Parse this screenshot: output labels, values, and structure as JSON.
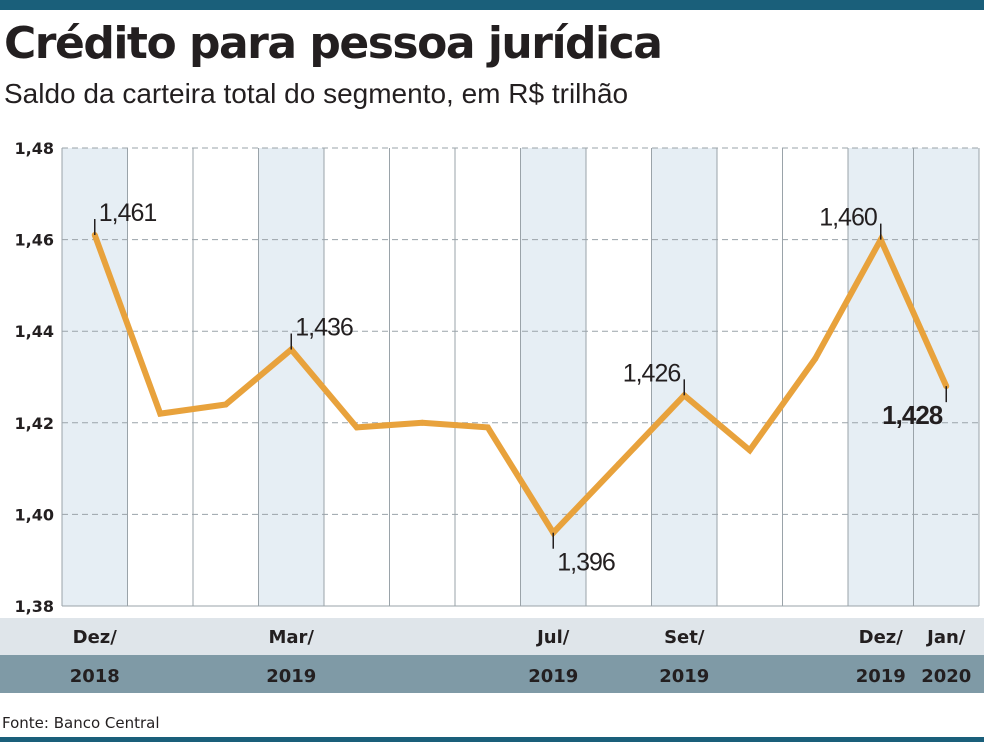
{
  "header": {
    "title": "Crédito para pessoa jurídica",
    "subtitle": "Saldo da carteira total do segmento, em R$ trilhão"
  },
  "footer": {
    "source": "Fonte: Banco Central"
  },
  "colors": {
    "line": "#e8a23c",
    "shade": "#e6eef4",
    "month_band": "#dfe5ea",
    "year_band": "#7f9aa6",
    "grid": "#9aa3a9",
    "text": "#231f20"
  },
  "chart_data": {
    "type": "line",
    "title": "Crédito para pessoa jurídica",
    "subtitle": "Saldo da carteira total do segmento, em R$ trilhão",
    "ylim": [
      1.38,
      1.48
    ],
    "yticks": [
      "1,38",
      "1,40",
      "1,42",
      "1,44",
      "1,46",
      "1,48"
    ],
    "grid": true,
    "series": [
      {
        "name": "Saldo da carteira total",
        "values": [
          1.461,
          1.422,
          1.424,
          1.436,
          1.419,
          1.42,
          1.419,
          1.396,
          1.411,
          1.426,
          1.414,
          1.434,
          1.46,
          1.428
        ]
      }
    ],
    "shaded_columns": [
      0,
      3,
      7,
      9,
      12,
      13
    ],
    "x_month_labels": [
      {
        "index": 0,
        "label": "Dez/"
      },
      {
        "index": 3,
        "label": "Mar/"
      },
      {
        "index": 7,
        "label": "Jul/"
      },
      {
        "index": 9,
        "label": "Set/"
      },
      {
        "index": 12,
        "label": "Dez/"
      },
      {
        "index": 13,
        "label": "Jan/"
      }
    ],
    "x_year_labels": [
      {
        "index": 0,
        "label": "2018"
      },
      {
        "index": 3,
        "label": "2019"
      },
      {
        "index": 7,
        "label": "2019"
      },
      {
        "index": 9,
        "label": "2019"
      },
      {
        "index": 12,
        "label": "2019"
      },
      {
        "index": 13,
        "label": "2020"
      }
    ],
    "annotations": [
      {
        "index": 0,
        "label": "1,461",
        "bold": false,
        "anchor": "right-above"
      },
      {
        "index": 3,
        "label": "1,436",
        "bold": false,
        "anchor": "right-above"
      },
      {
        "index": 7,
        "label": "1,396",
        "bold": false,
        "anchor": "right-below"
      },
      {
        "index": 9,
        "label": "1,426",
        "bold": false,
        "anchor": "left-above"
      },
      {
        "index": 12,
        "label": "1,460",
        "bold": false,
        "anchor": "left-above"
      },
      {
        "index": 13,
        "label": "1,428",
        "bold": true,
        "anchor": "left-below"
      }
    ]
  }
}
